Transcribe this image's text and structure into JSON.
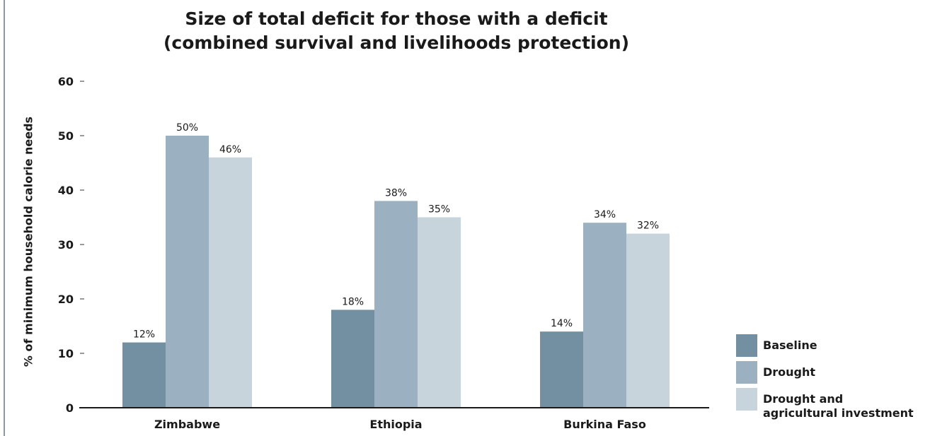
{
  "chart_data": {
    "type": "bar",
    "title_line1": "Size of total deficit for those with a deficit",
    "title_line2": "(combined survival and livelihoods protection)",
    "ylabel": "% of minimum household calorie needs",
    "xlabel": "",
    "ylim": [
      0,
      60
    ],
    "yticks": [
      "0",
      "10",
      "20",
      "30",
      "40",
      "50",
      "60"
    ],
    "categories": [
      "Zimbabwe",
      "Ethiopia",
      "Burkina Faso"
    ],
    "series": [
      {
        "name": "Baseline",
        "values": [
          12,
          18,
          14
        ],
        "labels": [
          "12%",
          "18%",
          "14%"
        ],
        "color": "#738fa2"
      },
      {
        "name": "Drought",
        "values": [
          50,
          38,
          34
        ],
        "labels": [
          "50%",
          "38%",
          "34%"
        ],
        "color": "#9bb0c0"
      },
      {
        "name": "Drought and agricultural investment",
        "values": [
          46,
          35,
          32
        ],
        "labels": [
          "46%",
          "35%",
          "32%"
        ],
        "color": "#c8d4dc"
      }
    ],
    "legend": {
      "position": "bottom-right",
      "items": [
        {
          "line1": "Baseline",
          "line2": ""
        },
        {
          "line1": "Drought",
          "line2": ""
        },
        {
          "line1": "Drought and",
          "line2": "agricultural investment"
        }
      ]
    }
  }
}
